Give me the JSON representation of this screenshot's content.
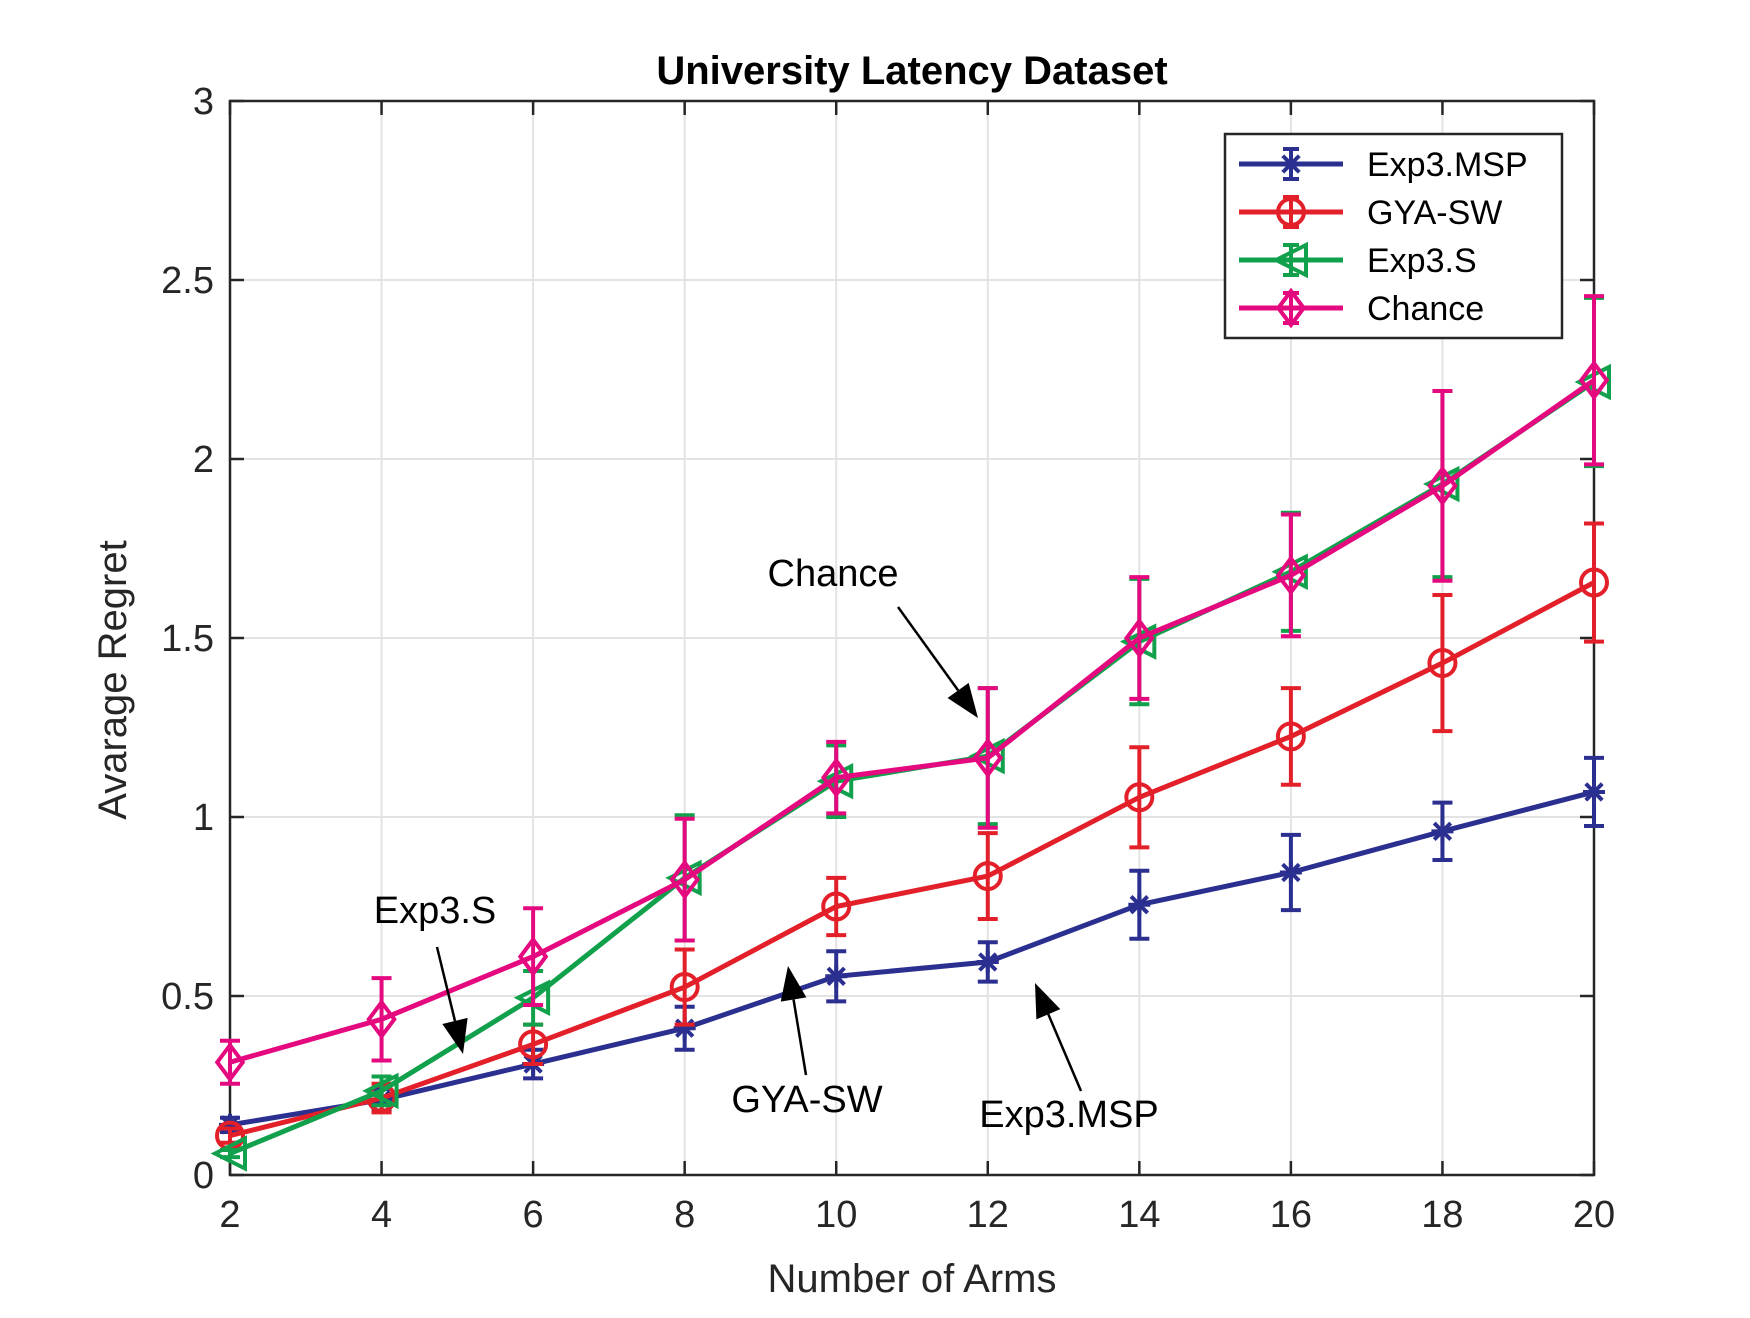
{
  "chart_data": {
    "type": "line",
    "title": "University Latency Dataset",
    "xlabel": "Number of Arms",
    "ylabel": "Avarage Regret",
    "xlim": [
      2,
      20
    ],
    "ylim": [
      0,
      3
    ],
    "x": [
      2,
      4,
      6,
      8,
      10,
      12,
      14,
      16,
      18,
      20
    ],
    "xticks": [
      "2",
      "4",
      "6",
      "8",
      "10",
      "12",
      "14",
      "16",
      "18",
      "20"
    ],
    "yticks": [
      {
        "value": 0,
        "label": "0"
      },
      {
        "value": 0.5,
        "label": "0.5"
      },
      {
        "value": 1,
        "label": "1"
      },
      {
        "value": 1.5,
        "label": "1.5"
      },
      {
        "value": 2,
        "label": "2"
      },
      {
        "value": 2.5,
        "label": "2.5"
      },
      {
        "value": 3,
        "label": "3"
      }
    ],
    "grid": true,
    "legend_position": "top-right",
    "series": [
      {
        "name": "Exp3.MSP",
        "color": "#2b2f8f",
        "marker": "star",
        "values": [
          0.14,
          0.21,
          0.31,
          0.41,
          0.555,
          0.595,
          0.755,
          0.845,
          0.96,
          1.07
        ],
        "errors": [
          0.02,
          0.03,
          0.04,
          0.06,
          0.07,
          0.055,
          0.095,
          0.105,
          0.08,
          0.095
        ]
      },
      {
        "name": "GYA-SW",
        "color": "#e3202a",
        "marker": "circle",
        "values": [
          0.11,
          0.215,
          0.365,
          0.525,
          0.75,
          0.835,
          1.055,
          1.225,
          1.43,
          1.655
        ],
        "errors": [
          0.02,
          0.04,
          0.055,
          0.105,
          0.08,
          0.12,
          0.14,
          0.135,
          0.19,
          0.165
        ]
      },
      {
        "name": "Exp3.S",
        "color": "#11a04b",
        "marker": "triangle-left",
        "values": [
          0.06,
          0.235,
          0.495,
          0.83,
          1.1,
          1.17,
          1.49,
          1.685,
          1.93,
          2.215
        ],
        "errors": [
          0.01,
          0.04,
          0.075,
          0.175,
          0.1,
          0.19,
          0.175,
          0.165,
          0.26,
          0.235
        ]
      },
      {
        "name": "Chance",
        "color": "#e5097f",
        "marker": "diamond",
        "values": [
          0.315,
          0.435,
          0.61,
          0.825,
          1.11,
          1.165,
          1.5,
          1.675,
          1.925,
          2.22
        ],
        "errors": [
          0.06,
          0.115,
          0.135,
          0.17,
          0.1,
          0.195,
          0.17,
          0.17,
          0.265,
          0.235
        ]
      }
    ],
    "annotations": [
      {
        "text": "Chance",
        "target_series": "Chance",
        "target_x": 12
      },
      {
        "text": "Exp3.S",
        "target_series": "Exp3.S",
        "target_x": 5
      },
      {
        "text": "GYA-SW",
        "target_series": "GYA-SW",
        "target_x": 9.2
      },
      {
        "text": "Exp3.MSP",
        "target_series": "Exp3.MSP",
        "target_x": 12.5
      }
    ]
  }
}
